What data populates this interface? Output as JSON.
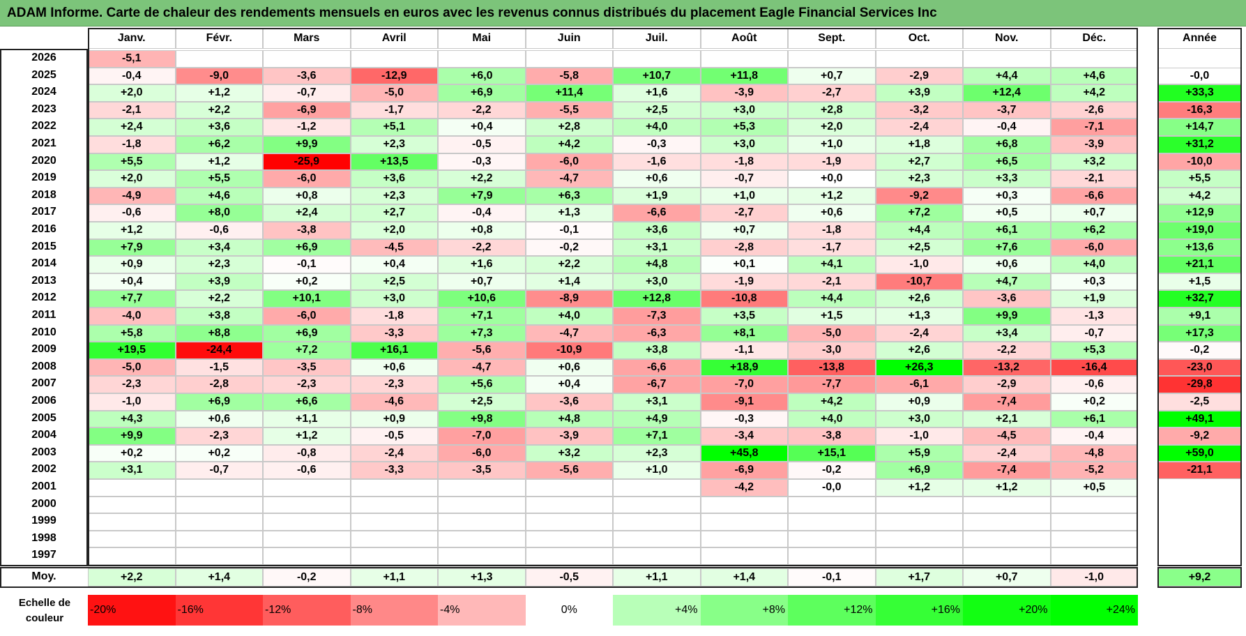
{
  "title": "ADAM Informe. Carte de chaleur des rendements mensuels en euros avec les revenus connus distribués du placement Eagle Financial Services Inc",
  "months": [
    "Janv.",
    "Févr.",
    "Mars",
    "Avril",
    "Mai",
    "Juin",
    "Juil.",
    "Août",
    "Sept.",
    "Oct.",
    "Nov.",
    "Déc."
  ],
  "year_header": "Année",
  "avg_label": "Moy.",
  "scale_label": "Echelle de couleur",
  "colors": {
    "title_bg": "#7cc47a",
    "neg": "#ff0000",
    "pos": "#00ff00"
  },
  "chart_data": {
    "type": "heatmap",
    "x": [
      "Janv.",
      "Févr.",
      "Mars",
      "Avril",
      "Mai",
      "Juin",
      "Juil.",
      "Août",
      "Sept.",
      "Oct.",
      "Nov.",
      "Déc."
    ],
    "rows": [
      {
        "year": "2026",
        "m": [
          "-5,1",
          "",
          "",
          "",
          "",
          "",
          "",
          "",
          "",
          "",
          "",
          ""
        ],
        "y": ""
      },
      {
        "year": "2025",
        "m": [
          "-0,4",
          "-9,0",
          "-3,6",
          "-12,9",
          "+6,0",
          "-5,8",
          "+10,7",
          "+11,8",
          "+0,7",
          "-2,9",
          "+4,4",
          "+4,6"
        ],
        "y": "-0,0"
      },
      {
        "year": "2024",
        "m": [
          "+2,0",
          "+1,2",
          "-0,7",
          "-5,0",
          "+6,9",
          "+11,4",
          "+1,6",
          "-3,9",
          "-2,7",
          "+3,9",
          "+12,4",
          "+4,2"
        ],
        "y": "+33,3"
      },
      {
        "year": "2023",
        "m": [
          "-2,1",
          "+2,2",
          "-6,9",
          "-1,7",
          "-2,2",
          "-5,5",
          "+2,5",
          "+3,0",
          "+2,8",
          "-3,2",
          "-3,7",
          "-2,6"
        ],
        "y": "-16,3"
      },
      {
        "year": "2022",
        "m": [
          "+2,4",
          "+3,6",
          "-1,2",
          "+5,1",
          "+0,4",
          "+2,8",
          "+4,0",
          "+5,3",
          "+2,0",
          "-2,4",
          "-0,4",
          "-7,1"
        ],
        "y": "+14,7"
      },
      {
        "year": "2021",
        "m": [
          "-1,8",
          "+6,2",
          "+9,9",
          "+2,3",
          "-0,5",
          "+4,2",
          "-0,3",
          "+3,0",
          "+1,0",
          "+1,8",
          "+6,8",
          "-3,9"
        ],
        "y": "+31,2"
      },
      {
        "year": "2020",
        "m": [
          "+5,5",
          "+1,2",
          "-25,9",
          "+13,5",
          "-0,3",
          "-6,0",
          "-1,6",
          "-1,8",
          "-1,9",
          "+2,7",
          "+6,5",
          "+3,2"
        ],
        "y": "-10,0"
      },
      {
        "year": "2019",
        "m": [
          "+2,0",
          "+5,5",
          "-6,0",
          "+3,6",
          "+2,2",
          "-4,7",
          "+0,6",
          "-0,7",
          "+0,0",
          "+2,3",
          "+3,3",
          "-2,1"
        ],
        "y": "+5,5"
      },
      {
        "year": "2018",
        "m": [
          "-4,9",
          "+4,6",
          "+0,8",
          "+2,3",
          "+7,9",
          "+6,3",
          "+1,9",
          "+1,0",
          "+1,2",
          "-9,2",
          "+0,3",
          "-6,6"
        ],
        "y": "+4,2"
      },
      {
        "year": "2017",
        "m": [
          "-0,6",
          "+8,0",
          "+2,4",
          "+2,7",
          "-0,4",
          "+1,3",
          "-6,6",
          "-2,7",
          "+0,6",
          "+7,2",
          "+0,5",
          "+0,7"
        ],
        "y": "+12,9"
      },
      {
        "year": "2016",
        "m": [
          "+1,2",
          "-0,6",
          "-3,8",
          "+2,0",
          "+0,8",
          "-0,1",
          "+3,6",
          "+0,7",
          "-1,8",
          "+4,4",
          "+6,1",
          "+6,2"
        ],
        "y": "+19,0"
      },
      {
        "year": "2015",
        "m": [
          "+7,9",
          "+3,4",
          "+6,9",
          "-4,5",
          "-2,2",
          "-0,2",
          "+3,1",
          "-2,8",
          "-1,7",
          "+2,5",
          "+7,6",
          "-6,0"
        ],
        "y": "+13,6"
      },
      {
        "year": "2014",
        "m": [
          "+0,9",
          "+2,3",
          "-0,1",
          "+0,4",
          "+1,6",
          "+2,2",
          "+4,8",
          "+0,1",
          "+4,1",
          "-1,0",
          "+0,6",
          "+4,0"
        ],
        "y": "+21,1"
      },
      {
        "year": "2013",
        "m": [
          "+0,4",
          "+3,9",
          "+0,2",
          "+2,5",
          "+0,7",
          "+1,4",
          "+3,0",
          "-1,9",
          "-2,1",
          "-10,7",
          "+4,7",
          "+0,3"
        ],
        "y": "+1,5"
      },
      {
        "year": "2012",
        "m": [
          "+7,7",
          "+2,2",
          "+10,1",
          "+3,0",
          "+10,6",
          "-8,9",
          "+12,8",
          "-10,8",
          "+4,4",
          "+2,6",
          "-3,6",
          "+1,9"
        ],
        "y": "+32,7"
      },
      {
        "year": "2011",
        "m": [
          "-4,0",
          "+3,8",
          "-6,0",
          "-1,8",
          "+7,1",
          "+4,0",
          "-7,3",
          "+3,5",
          "+1,5",
          "+1,3",
          "+9,9",
          "-1,3"
        ],
        "y": "+9,1"
      },
      {
        "year": "2010",
        "m": [
          "+5,8",
          "+8,8",
          "+6,9",
          "-3,3",
          "+7,3",
          "-4,7",
          "-6,3",
          "+8,1",
          "-5,0",
          "-2,4",
          "+3,4",
          "-0,7"
        ],
        "y": "+17,3"
      },
      {
        "year": "2009",
        "m": [
          "+19,5",
          "-24,4",
          "+7,2",
          "+16,1",
          "-5,6",
          "-10,9",
          "+3,8",
          "-1,1",
          "-3,0",
          "+2,6",
          "-2,2",
          "+5,3"
        ],
        "y": "-0,2"
      },
      {
        "year": "2008",
        "m": [
          "-5,0",
          "-1,5",
          "-3,5",
          "+0,6",
          "-4,7",
          "+0,6",
          "-6,6",
          "+18,9",
          "-13,8",
          "+26,3",
          "-13,2",
          "-16,4"
        ],
        "y": "-23,0"
      },
      {
        "year": "2007",
        "m": [
          "-2,3",
          "-2,8",
          "-2,3",
          "-2,3",
          "+5,6",
          "+0,4",
          "-6,7",
          "-7,0",
          "-7,7",
          "-6,1",
          "-2,9",
          "-0,6"
        ],
        "y": "-29,8"
      },
      {
        "year": "2006",
        "m": [
          "-1,0",
          "+6,9",
          "+6,6",
          "-4,6",
          "+2,5",
          "-3,6",
          "+3,1",
          "-9,1",
          "+4,2",
          "+0,9",
          "-7,4",
          "+0,2"
        ],
        "y": "-2,5"
      },
      {
        "year": "2005",
        "m": [
          "+4,3",
          "+0,6",
          "+1,1",
          "+0,9",
          "+9,8",
          "+4,8",
          "+4,9",
          "-0,3",
          "+4,0",
          "+3,0",
          "+2,1",
          "+6,1"
        ],
        "y": "+49,1"
      },
      {
        "year": "2004",
        "m": [
          "+9,9",
          "-2,3",
          "+1,2",
          "-0,5",
          "-7,0",
          "-3,9",
          "+7,1",
          "-3,4",
          "-3,8",
          "-1,0",
          "-4,5",
          "-0,4"
        ],
        "y": "-9,2"
      },
      {
        "year": "2003",
        "m": [
          "+0,2",
          "+0,2",
          "-0,8",
          "-2,4",
          "-6,0",
          "+3,2",
          "+2,3",
          "+45,8",
          "+15,1",
          "+5,9",
          "-2,4",
          "-4,8"
        ],
        "y": "+59,0"
      },
      {
        "year": "2002",
        "m": [
          "+3,1",
          "-0,7",
          "-0,6",
          "-3,3",
          "-3,5",
          "-5,6",
          "+1,0",
          "-6,9",
          "-0,2",
          "+6,9",
          "-7,4",
          "-5,2"
        ],
        "y": "-21,1"
      },
      {
        "year": "2001",
        "m": [
          "",
          "",
          "",
          "",
          "",
          "",
          "",
          "-4,2",
          "-0,0",
          "+1,2",
          "+1,2",
          "+0,5"
        ],
        "y": ""
      },
      {
        "year": "2000",
        "m": [
          "",
          "",
          "",
          "",
          "",
          "",
          "",
          "",
          "",
          "",
          "",
          ""
        ],
        "y": ""
      },
      {
        "year": "1999",
        "m": [
          "",
          "",
          "",
          "",
          "",
          "",
          "",
          "",
          "",
          "",
          "",
          ""
        ],
        "y": ""
      },
      {
        "year": "1998",
        "m": [
          "",
          "",
          "",
          "",
          "",
          "",
          "",
          "",
          "",
          "",
          "",
          ""
        ],
        "y": ""
      },
      {
        "year": "1997",
        "m": [
          "",
          "",
          "",
          "",
          "",
          "",
          "",
          "",
          "",
          "",
          "",
          ""
        ],
        "y": ""
      }
    ],
    "average": {
      "m": [
        "+2,2",
        "+1,4",
        "-0,2",
        "+1,1",
        "+1,3",
        "-0,5",
        "+1,1",
        "+1,4",
        "-0,1",
        "+1,7",
        "+0,7",
        "-1,0"
      ],
      "y": "+9,2"
    },
    "scale": [
      "-20%",
      "-16%",
      "-12%",
      "-8%",
      "-4%",
      "0%",
      "+4%",
      "+8%",
      "+12%",
      "+16%",
      "+20%",
      "+24%"
    ]
  }
}
